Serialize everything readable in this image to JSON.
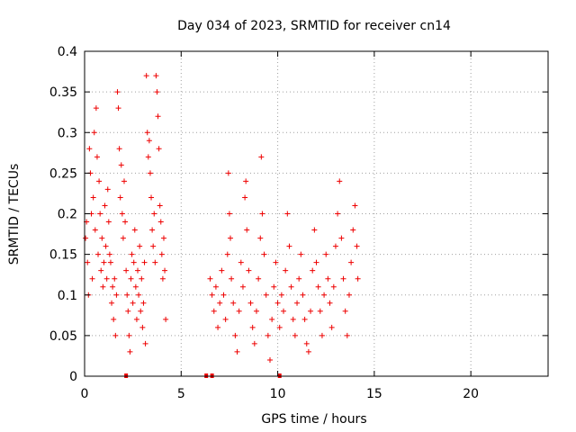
{
  "chart_data": {
    "type": "scatter",
    "title": "Day 034 of 2023, SRMTID for receiver cn14",
    "xlabel": "GPS time / hours",
    "ylabel": "SRMTID / TECUs",
    "xlim": [
      0,
      24
    ],
    "ylim": [
      0,
      0.4
    ],
    "x_ticks": [
      0,
      5,
      10,
      15,
      20
    ],
    "x_tick_labels": [
      "0",
      "5",
      "10",
      "15",
      "20"
    ],
    "y_ticks": [
      0,
      0.05,
      0.1,
      0.15,
      0.2,
      0.25,
      0.3,
      0.35,
      0.4
    ],
    "y_tick_labels": [
      "0",
      "0.05",
      "0.1",
      "0.15",
      "0.2",
      "0.25",
      "0.3",
      "0.35",
      "0.4"
    ],
    "grid": true,
    "marker": "+",
    "series": [
      {
        "name": "SRMTID",
        "color": "#ee0000",
        "points": [
          [
            0.05,
            0.17
          ],
          [
            0.1,
            0.19
          ],
          [
            0.15,
            0.14
          ],
          [
            0.2,
            0.1
          ],
          [
            0.25,
            0.28
          ],
          [
            0.3,
            0.25
          ],
          [
            0.35,
            0.2
          ],
          [
            0.4,
            0.12
          ],
          [
            0.45,
            0.22
          ],
          [
            0.5,
            0.3
          ],
          [
            0.55,
            0.18
          ],
          [
            0.6,
            0.33
          ],
          [
            0.65,
            0.27
          ],
          [
            0.7,
            0.15
          ],
          [
            0.75,
            0.24
          ],
          [
            0.8,
            0.2
          ],
          [
            0.85,
            0.13
          ],
          [
            0.9,
            0.17
          ],
          [
            0.95,
            0.11
          ],
          [
            1.0,
            0.14
          ],
          [
            1.05,
            0.21
          ],
          [
            1.1,
            0.16
          ],
          [
            1.15,
            0.12
          ],
          [
            1.2,
            0.23
          ],
          [
            1.25,
            0.19
          ],
          [
            1.3,
            0.15
          ],
          [
            1.35,
            0.14
          ],
          [
            1.4,
            0.09
          ],
          [
            1.45,
            0.11
          ],
          [
            1.5,
            0.07
          ],
          [
            1.55,
            0.12
          ],
          [
            1.6,
            0.05
          ],
          [
            1.65,
            0.1
          ],
          [
            1.7,
            0.35
          ],
          [
            1.75,
            0.33
          ],
          [
            1.8,
            0.28
          ],
          [
            1.85,
            0.22
          ],
          [
            1.9,
            0.26
          ],
          [
            1.95,
            0.2
          ],
          [
            2.0,
            0.17
          ],
          [
            2.05,
            0.24
          ],
          [
            2.1,
            0.19
          ],
          [
            2.15,
            0.13
          ],
          [
            2.2,
            0.1
          ],
          [
            2.25,
            0.08
          ],
          [
            2.3,
            0.05
          ],
          [
            2.35,
            0.03
          ],
          [
            2.4,
            0.12
          ],
          [
            2.45,
            0.15
          ],
          [
            2.5,
            0.09
          ],
          [
            2.55,
            0.14
          ],
          [
            2.6,
            0.18
          ],
          [
            2.65,
            0.11
          ],
          [
            2.7,
            0.07
          ],
          [
            2.75,
            0.13
          ],
          [
            2.8,
            0.1
          ],
          [
            2.85,
            0.16
          ],
          [
            2.9,
            0.08
          ],
          [
            2.95,
            0.12
          ],
          [
            3.0,
            0.06
          ],
          [
            3.05,
            0.09
          ],
          [
            3.1,
            0.14
          ],
          [
            3.15,
            0.04
          ],
          [
            3.2,
            0.37
          ],
          [
            3.25,
            0.3
          ],
          [
            3.3,
            0.27
          ],
          [
            3.35,
            0.29
          ],
          [
            3.4,
            0.25
          ],
          [
            3.45,
            0.22
          ],
          [
            3.5,
            0.18
          ],
          [
            3.55,
            0.16
          ],
          [
            3.6,
            0.2
          ],
          [
            3.65,
            0.14
          ],
          [
            3.7,
            0.37
          ],
          [
            3.75,
            0.35
          ],
          [
            3.8,
            0.32
          ],
          [
            3.85,
            0.28
          ],
          [
            3.9,
            0.21
          ],
          [
            3.95,
            0.19
          ],
          [
            4.0,
            0.15
          ],
          [
            4.05,
            0.12
          ],
          [
            4.1,
            0.17
          ],
          [
            4.15,
            0.13
          ],
          [
            4.2,
            0.07
          ],
          [
            6.5,
            0.12
          ],
          [
            6.6,
            0.1
          ],
          [
            6.7,
            0.08
          ],
          [
            6.8,
            0.11
          ],
          [
            6.9,
            0.06
          ],
          [
            7.0,
            0.09
          ],
          [
            7.1,
            0.13
          ],
          [
            7.2,
            0.1
          ],
          [
            7.3,
            0.07
          ],
          [
            7.4,
            0.15
          ],
          [
            7.45,
            0.25
          ],
          [
            7.5,
            0.2
          ],
          [
            7.55,
            0.17
          ],
          [
            7.6,
            0.12
          ],
          [
            7.7,
            0.09
          ],
          [
            7.8,
            0.05
          ],
          [
            7.9,
            0.03
          ],
          [
            8.0,
            0.08
          ],
          [
            8.1,
            0.14
          ],
          [
            8.2,
            0.11
          ],
          [
            8.3,
            0.22
          ],
          [
            8.35,
            0.24
          ],
          [
            8.4,
            0.18
          ],
          [
            8.5,
            0.13
          ],
          [
            8.6,
            0.09
          ],
          [
            8.7,
            0.06
          ],
          [
            8.8,
            0.04
          ],
          [
            8.9,
            0.08
          ],
          [
            9.0,
            0.12
          ],
          [
            9.1,
            0.17
          ],
          [
            9.15,
            0.27
          ],
          [
            9.2,
            0.2
          ],
          [
            9.3,
            0.15
          ],
          [
            9.4,
            0.1
          ],
          [
            9.5,
            0.05
          ],
          [
            9.6,
            0.02
          ],
          [
            9.7,
            0.07
          ],
          [
            9.8,
            0.11
          ],
          [
            9.9,
            0.14
          ],
          [
            10.0,
            0.09
          ],
          [
            10.1,
            0.06
          ],
          [
            10.2,
            0.1
          ],
          [
            10.3,
            0.08
          ],
          [
            10.4,
            0.13
          ],
          [
            10.5,
            0.2
          ],
          [
            10.6,
            0.16
          ],
          [
            10.7,
            0.11
          ],
          [
            10.8,
            0.07
          ],
          [
            10.9,
            0.05
          ],
          [
            11.0,
            0.09
          ],
          [
            11.1,
            0.12
          ],
          [
            11.2,
            0.15
          ],
          [
            11.3,
            0.1
          ],
          [
            11.4,
            0.07
          ],
          [
            11.5,
            0.04
          ],
          [
            11.6,
            0.03
          ],
          [
            11.7,
            0.08
          ],
          [
            11.8,
            0.13
          ],
          [
            11.9,
            0.18
          ],
          [
            12.0,
            0.14
          ],
          [
            12.1,
            0.11
          ],
          [
            12.2,
            0.08
          ],
          [
            12.3,
            0.05
          ],
          [
            12.4,
            0.1
          ],
          [
            12.5,
            0.15
          ],
          [
            12.6,
            0.12
          ],
          [
            12.7,
            0.09
          ],
          [
            12.8,
            0.06
          ],
          [
            12.9,
            0.11
          ],
          [
            13.0,
            0.16
          ],
          [
            13.1,
            0.2
          ],
          [
            13.2,
            0.24
          ],
          [
            13.3,
            0.17
          ],
          [
            13.4,
            0.12
          ],
          [
            13.5,
            0.08
          ],
          [
            13.6,
            0.05
          ],
          [
            13.7,
            0.1
          ],
          [
            13.8,
            0.14
          ],
          [
            13.9,
            0.18
          ],
          [
            14.0,
            0.21
          ],
          [
            14.1,
            0.16
          ],
          [
            14.15,
            0.12
          ]
        ]
      }
    ],
    "zero_markers": [
      2.15,
      6.3,
      6.6,
      10.1
    ]
  }
}
